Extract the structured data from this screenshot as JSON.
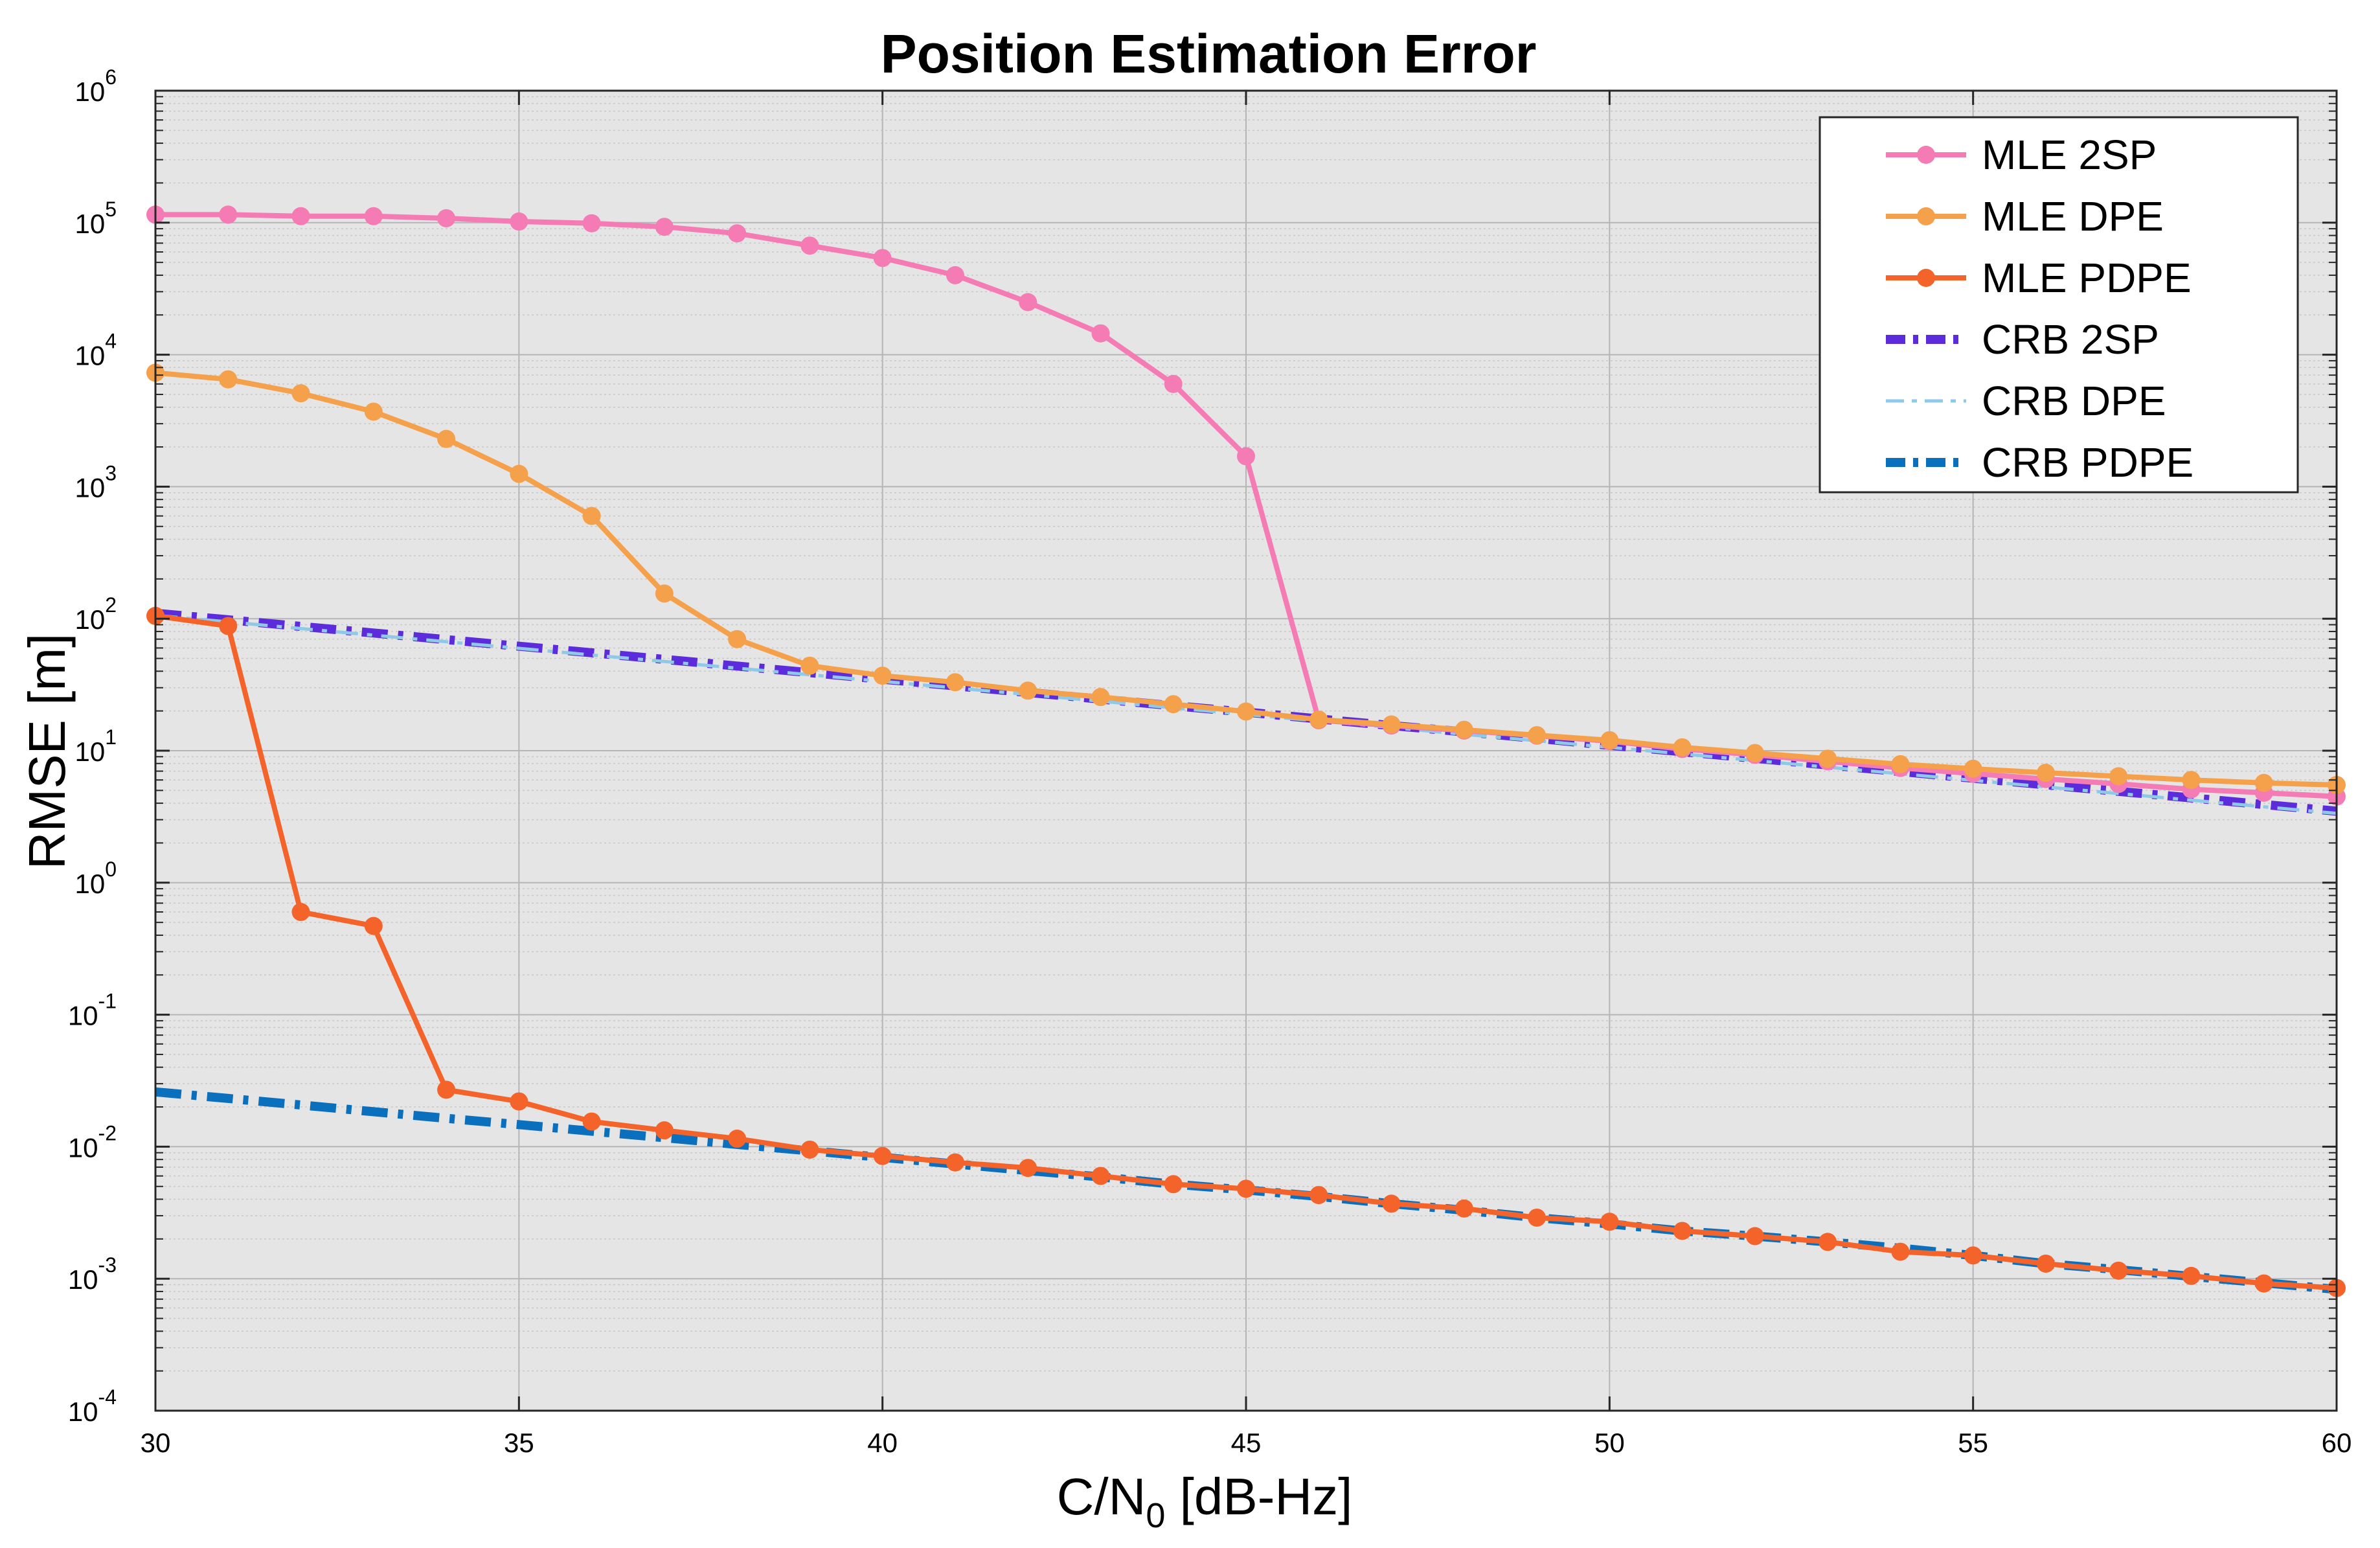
{
  "chart_data": {
    "type": "line",
    "title": "Position Estimation Error",
    "xlabel": {
      "main": "C/N",
      "sub": "0",
      "rest": " [dB-Hz]"
    },
    "ylabel": "RMSE [m]",
    "xlim": [
      30,
      60
    ],
    "ylim": [
      0.0001,
      1000000
    ],
    "yscale": "log",
    "grid": true,
    "minor_grid": true,
    "legend_position": "top-right",
    "xticks": [
      "30",
      "35",
      "40",
      "45",
      "50",
      "55",
      "60"
    ],
    "yticks": [
      {
        "base": "10",
        "exp": "6"
      },
      {
        "base": "10",
        "exp": "5"
      },
      {
        "base": "10",
        "exp": "4"
      },
      {
        "base": "10",
        "exp": "3"
      },
      {
        "base": "10",
        "exp": "2"
      },
      {
        "base": "10",
        "exp": "1"
      },
      {
        "base": "10",
        "exp": "0"
      },
      {
        "base": "10",
        "exp": "-1"
      },
      {
        "base": "10",
        "exp": "-2"
      },
      {
        "base": "10",
        "exp": "-3"
      },
      {
        "base": "10",
        "exp": "-4"
      }
    ],
    "x": [
      30,
      31,
      32,
      33,
      34,
      35,
      36,
      37,
      38,
      39,
      40,
      41,
      42,
      43,
      44,
      45,
      46,
      47,
      48,
      49,
      50,
      51,
      52,
      53,
      54,
      55,
      56,
      57,
      58,
      59,
      60
    ],
    "series": [
      {
        "name": "MLE 2SP",
        "color": "#f47bb4",
        "style": "solid-marker",
        "values": [
          115000,
          115000,
          112000,
          112000,
          108000,
          102000,
          99000,
          93000,
          83000,
          67000,
          54000,
          40000,
          25000,
          14500,
          6000,
          1700,
          17,
          15.5,
          14.2,
          13,
          11.8,
          10.3,
          9.3,
          8.3,
          7.4,
          6.7,
          6.1,
          5.6,
          5.1,
          4.8,
          4.5
        ]
      },
      {
        "name": "MLE DPE",
        "color": "#f5a04a",
        "style": "solid-marker",
        "values": [
          7300,
          6500,
          5100,
          3700,
          2300,
          1250,
          600,
          155,
          70,
          44,
          37,
          33,
          28.5,
          25.5,
          22.5,
          19.8,
          17.2,
          15.8,
          14.4,
          13.1,
          12,
          10.6,
          9.6,
          8.7,
          7.9,
          7.3,
          6.8,
          6.4,
          6,
          5.7,
          5.5
        ]
      },
      {
        "name": "MLE PDPE",
        "color": "#f4642a",
        "style": "solid-marker",
        "values": [
          105,
          88,
          0.6,
          0.47,
          0.027,
          0.022,
          0.0155,
          0.0133,
          0.0115,
          0.0095,
          0.0085,
          0.0076,
          0.0069,
          0.006,
          0.0052,
          0.0048,
          0.0043,
          0.0037,
          0.0034,
          0.0029,
          0.0027,
          0.0023,
          0.0021,
          0.0019,
          0.0016,
          0.0015,
          0.0013,
          0.00115,
          0.00105,
          0.00092,
          0.00085
        ]
      },
      {
        "name": "CRB 2SP",
        "color": "#5b2bdc",
        "style": "dash-dot-thick",
        "values": [
          110,
          98.1,
          87.4,
          77.9,
          69.4,
          61.9,
          55.2,
          49.2,
          43.8,
          39,
          34.8,
          31,
          27.6,
          24.6,
          21.9,
          19.6,
          17.4,
          15.5,
          13.9,
          12.4,
          11,
          9.82,
          8.75,
          7.8,
          6.95,
          6.19,
          5.52,
          4.92,
          4.39,
          3.91,
          3.48
        ]
      },
      {
        "name": "CRB DPE",
        "color": "#8ec9e8",
        "style": "dash-dot-thin",
        "values": [
          106,
          94.5,
          84.2,
          75,
          66.9,
          59.6,
          53.1,
          47.4,
          42.2,
          37.6,
          33.5,
          29.9,
          26.6,
          23.7,
          21.1,
          18.8,
          16.8,
          15,
          13.3,
          11.9,
          10.6,
          9.45,
          8.42,
          7.5,
          6.69,
          5.96,
          5.31,
          4.74,
          4.22,
          3.76,
          3.35
        ]
      },
      {
        "name": "CRB PDPE",
        "color": "#0a6fbd",
        "style": "dash-dot-thick",
        "values": [
          0.026,
          0.0232,
          0.0207,
          0.0184,
          0.0164,
          0.0147,
          0.0131,
          0.0117,
          0.0104,
          0.0093,
          0.0083,
          0.0074,
          0.0066,
          0.0059,
          0.0052,
          0.0047,
          0.0042,
          0.0037,
          0.0033,
          0.0029,
          0.0026,
          0.0023,
          0.0021,
          0.0019,
          0.0017,
          0.0015,
          0.0013,
          0.00117,
          0.00104,
          0.00093,
          0.00083
        ]
      }
    ]
  }
}
